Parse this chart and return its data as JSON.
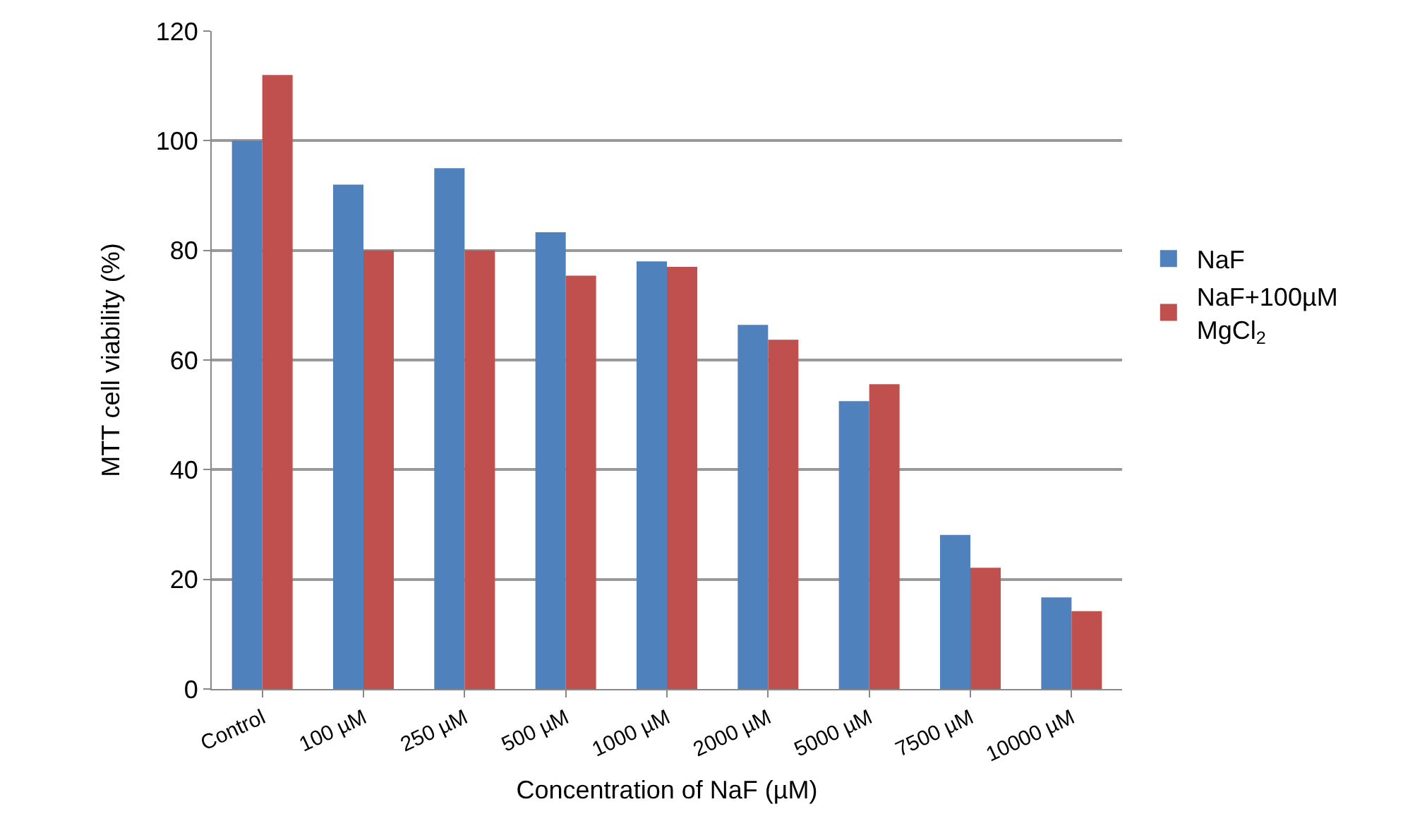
{
  "chart_data": {
    "type": "bar",
    "xlabel": "Concentration of NaF (µM)",
    "ylabel": "MTT cell viability (%)",
    "categories": [
      "Control",
      "100 µM",
      "250 µM",
      "500 µM",
      "1000 µM",
      "2000 µM",
      "5000 µM",
      "7500 µM",
      "10000 µM"
    ],
    "series": [
      {
        "name": "NaF",
        "color": "#4f81bd",
        "values": [
          100,
          92,
          95,
          83.3,
          78,
          66.4,
          52.5,
          28.1,
          16.7
        ]
      },
      {
        "name": "NaF+100µM MgCl$_{2}$",
        "color": "#c0504d",
        "values": [
          112,
          80,
          80,
          75.4,
          77,
          63.7,
          55.6,
          22.1,
          14.2
        ]
      }
    ],
    "ylim": [
      0,
      120
    ],
    "yticks": [
      0,
      20,
      40,
      60,
      80,
      100,
      120
    ],
    "grid": "y",
    "legend": "right"
  }
}
